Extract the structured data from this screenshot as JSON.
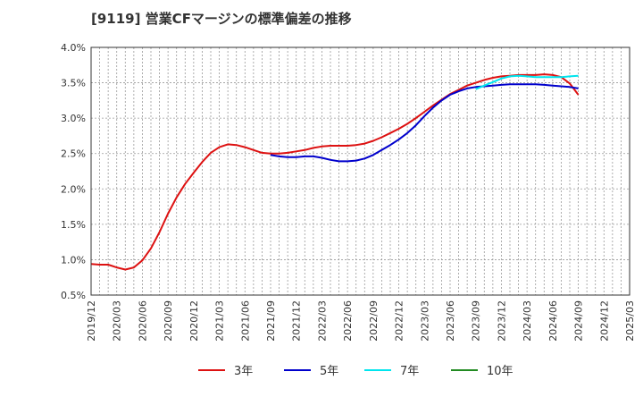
{
  "chart_data": {
    "type": "line",
    "title": "[9119]  営業CFマージンの標準偏差の推移",
    "ylim": [
      0.005,
      0.04
    ],
    "y_ticks": [
      0.005,
      0.01,
      0.015,
      0.02,
      0.025,
      0.03,
      0.035,
      0.04
    ],
    "y_tick_labels": [
      "0.5%",
      "1.0%",
      "1.5%",
      "2.0%",
      "2.5%",
      "3.0%",
      "3.5%",
      "4.0%"
    ],
    "x_ticks": [
      "2019/12",
      "2020/03",
      "2020/06",
      "2020/09",
      "2020/12",
      "2021/03",
      "2021/06",
      "2021/09",
      "2021/12",
      "2022/03",
      "2022/06",
      "2022/09",
      "2022/12",
      "2023/03",
      "2023/06",
      "2023/09",
      "2023/12",
      "2024/03",
      "2024/06",
      "2024/09",
      "2024/12",
      "2025/03"
    ],
    "xlim": [
      "2019/12",
      "2025/03"
    ],
    "grid": true,
    "legend_position": "bottom",
    "series": [
      {
        "name": "3年",
        "color": "#dd1111",
        "points": [
          [
            "2019/12",
            0.0094
          ],
          [
            "2020/01",
            0.0093
          ],
          [
            "2020/02",
            0.0093
          ],
          [
            "2020/03",
            0.0089
          ],
          [
            "2020/04",
            0.0086
          ],
          [
            "2020/05",
            0.0089
          ],
          [
            "2020/06",
            0.0099
          ],
          [
            "2020/07",
            0.0116
          ],
          [
            "2020/08",
            0.0139
          ],
          [
            "2020/09",
            0.0165
          ],
          [
            "2020/10",
            0.0188
          ],
          [
            "2020/11",
            0.0207
          ],
          [
            "2020/12",
            0.0223
          ],
          [
            "2021/01",
            0.0238
          ],
          [
            "2021/02",
            0.0251
          ],
          [
            "2021/03",
            0.0259
          ],
          [
            "2021/04",
            0.0263
          ],
          [
            "2021/05",
            0.0262
          ],
          [
            "2021/06",
            0.0259
          ],
          [
            "2021/07",
            0.0255
          ],
          [
            "2021/08",
            0.0251
          ],
          [
            "2021/09",
            0.025
          ],
          [
            "2021/10",
            0.025
          ],
          [
            "2021/11",
            0.0251
          ],
          [
            "2021/12",
            0.0253
          ],
          [
            "2022/01",
            0.0255
          ],
          [
            "2022/02",
            0.0258
          ],
          [
            "2022/03",
            0.026
          ],
          [
            "2022/04",
            0.0261
          ],
          [
            "2022/05",
            0.0261
          ],
          [
            "2022/06",
            0.0261
          ],
          [
            "2022/07",
            0.0262
          ],
          [
            "2022/08",
            0.0264
          ],
          [
            "2022/09",
            0.0268
          ],
          [
            "2022/10",
            0.0273
          ],
          [
            "2022/11",
            0.0279
          ],
          [
            "2022/12",
            0.0285
          ],
          [
            "2023/01",
            0.0292
          ],
          [
            "2023/02",
            0.03
          ],
          [
            "2023/03",
            0.0309
          ],
          [
            "2023/04",
            0.0318
          ],
          [
            "2023/05",
            0.0326
          ],
          [
            "2023/06",
            0.0334
          ],
          [
            "2023/07",
            0.034
          ],
          [
            "2023/08",
            0.0346
          ],
          [
            "2023/09",
            0.035
          ],
          [
            "2023/10",
            0.0354
          ],
          [
            "2023/11",
            0.0357
          ],
          [
            "2023/12",
            0.0359
          ],
          [
            "2024/01",
            0.036
          ],
          [
            "2024/02",
            0.0361
          ],
          [
            "2024/03",
            0.0361
          ],
          [
            "2024/04",
            0.0361
          ],
          [
            "2024/05",
            0.0362
          ],
          [
            "2024/06",
            0.0361
          ],
          [
            "2024/07",
            0.0358
          ],
          [
            "2024/08",
            0.0349
          ],
          [
            "2024/09",
            0.0333
          ]
        ]
      },
      {
        "name": "5年",
        "color": "#0000cc",
        "points": [
          [
            "2021/09",
            0.0248
          ],
          [
            "2021/10",
            0.0246
          ],
          [
            "2021/11",
            0.0245
          ],
          [
            "2021/12",
            0.0245
          ],
          [
            "2022/01",
            0.0246
          ],
          [
            "2022/02",
            0.0246
          ],
          [
            "2022/03",
            0.0244
          ],
          [
            "2022/04",
            0.0241
          ],
          [
            "2022/05",
            0.0239
          ],
          [
            "2022/06",
            0.0239
          ],
          [
            "2022/07",
            0.024
          ],
          [
            "2022/08",
            0.0243
          ],
          [
            "2022/09",
            0.0248
          ],
          [
            "2022/10",
            0.0255
          ],
          [
            "2022/11",
            0.0262
          ],
          [
            "2022/12",
            0.027
          ],
          [
            "2023/01",
            0.0279
          ],
          [
            "2023/02",
            0.029
          ],
          [
            "2023/03",
            0.0303
          ],
          [
            "2023/04",
            0.0315
          ],
          [
            "2023/05",
            0.0325
          ],
          [
            "2023/06",
            0.0333
          ],
          [
            "2023/07",
            0.0338
          ],
          [
            "2023/08",
            0.0342
          ],
          [
            "2023/09",
            0.0344
          ],
          [
            "2023/10",
            0.0345
          ],
          [
            "2023/11",
            0.0346
          ],
          [
            "2023/12",
            0.0347
          ],
          [
            "2024/01",
            0.0348
          ],
          [
            "2024/02",
            0.0348
          ],
          [
            "2024/03",
            0.0348
          ],
          [
            "2024/04",
            0.0348
          ],
          [
            "2024/05",
            0.0347
          ],
          [
            "2024/06",
            0.0346
          ],
          [
            "2024/07",
            0.0345
          ],
          [
            "2024/08",
            0.0344
          ],
          [
            "2024/09",
            0.0342
          ]
        ]
      },
      {
        "name": "7年",
        "color": "#00e5ee",
        "points": [
          [
            "2023/09",
            0.0341
          ],
          [
            "2023/10",
            0.0346
          ],
          [
            "2023/11",
            0.0351
          ],
          [
            "2023/12",
            0.0356
          ],
          [
            "2024/01",
            0.0359
          ],
          [
            "2024/02",
            0.036
          ],
          [
            "2024/03",
            0.0359
          ],
          [
            "2024/04",
            0.0358
          ],
          [
            "2024/05",
            0.0358
          ],
          [
            "2024/06",
            0.0358
          ],
          [
            "2024/07",
            0.0358
          ],
          [
            "2024/08",
            0.0359
          ],
          [
            "2024/09",
            0.036
          ]
        ]
      },
      {
        "name": "10年",
        "color": "#228b22",
        "points": []
      }
    ]
  }
}
